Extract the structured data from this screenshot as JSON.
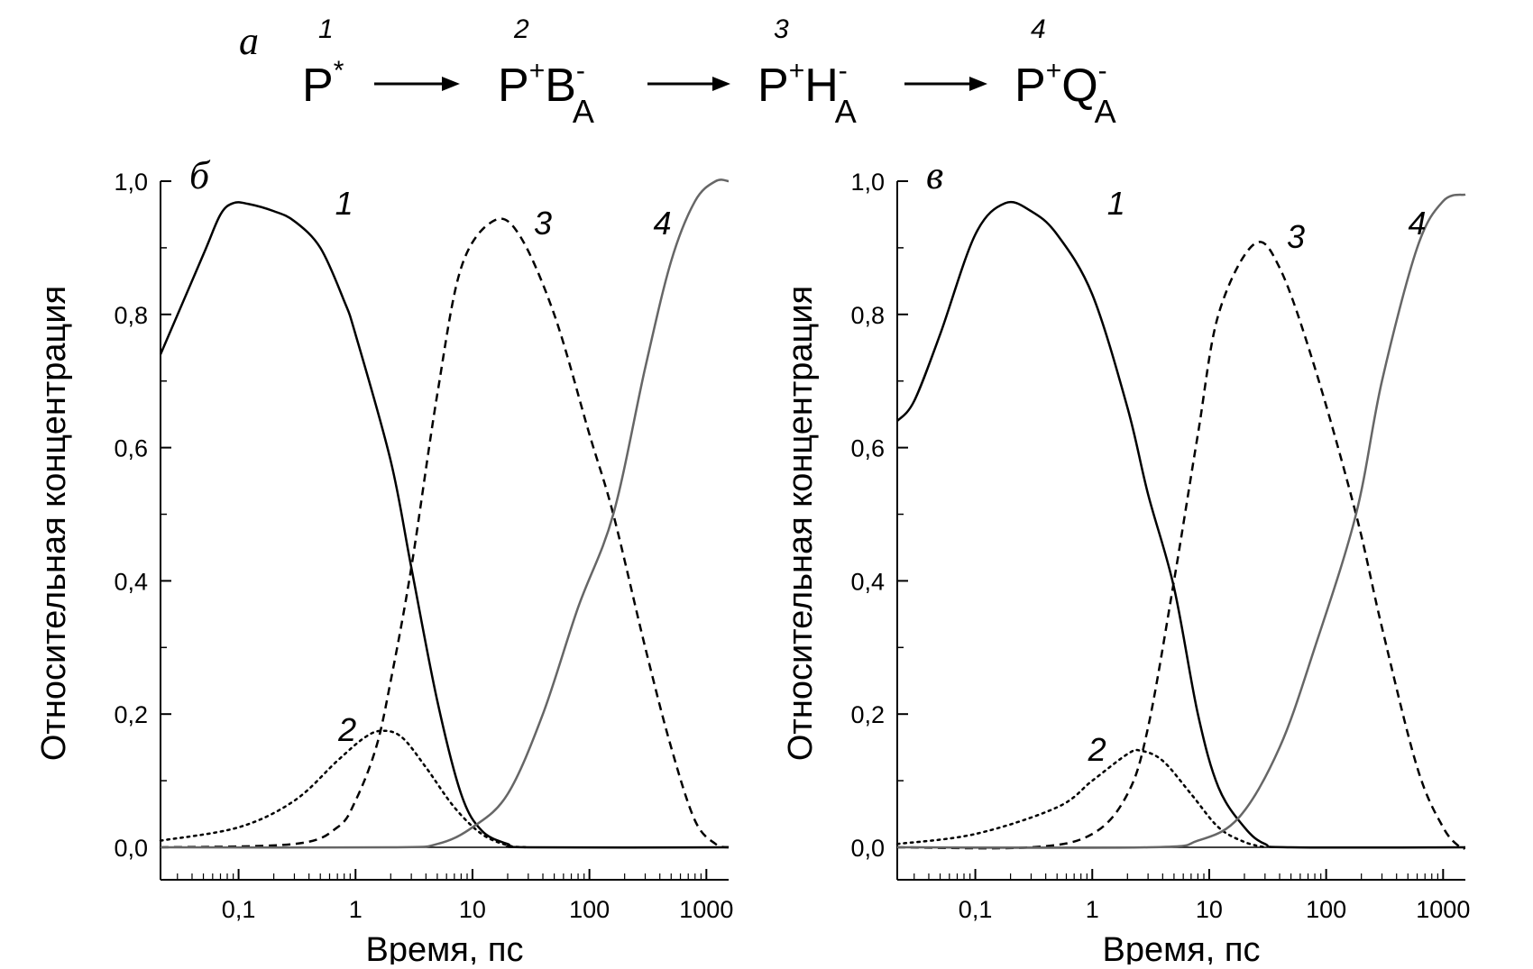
{
  "scheme": {
    "label": "а",
    "states": [
      {
        "num": "1",
        "main": "P",
        "sup": "*",
        "sub": ""
      },
      {
        "num": "2",
        "main": "P",
        "sup": "+",
        "main2": "B",
        "sup2": "-",
        "sub2": "A"
      },
      {
        "num": "3",
        "main": "P",
        "sup": "+",
        "main2": "H",
        "sup2": "-",
        "sub2": "A"
      },
      {
        "num": "4",
        "main": "P",
        "sup": "+",
        "main2": "Q",
        "sup2": "-",
        "sub2": "A"
      }
    ]
  },
  "chart_data": [
    {
      "type": "line",
      "panel_label": "б",
      "xlabel": "Время, пс",
      "ylabel": "Относительная концентрация",
      "xscale": "log",
      "xlim": [
        0.0215,
        1550
      ],
      "ylim": [
        -0.05,
        1.0
      ],
      "xticks": [
        0.1,
        1,
        10,
        100,
        1000
      ],
      "xtick_labels": [
        "0,1",
        "1",
        "10",
        "100",
        "1000"
      ],
      "yticks": [
        0,
        0.2,
        0.4,
        0.6,
        0.8,
        1.0
      ],
      "ytick_labels": [
        "0,0",
        "0,2",
        "0,4",
        "0,6",
        "0,8",
        "1,0"
      ],
      "grid": false,
      "series": [
        {
          "label": "1",
          "style": "solid",
          "color": "#000000",
          "x": [
            0.0215,
            0.05,
            0.07,
            0.09,
            0.12,
            0.2,
            0.3,
            0.5,
            0.8,
            1,
            2,
            3,
            5,
            8,
            12,
            20,
            30,
            1550
          ],
          "y": [
            0.74,
            0.89,
            0.95,
            0.967,
            0.966,
            0.955,
            0.94,
            0.9,
            0.82,
            0.77,
            0.58,
            0.42,
            0.22,
            0.08,
            0.025,
            0.005,
            0,
            0
          ]
        },
        {
          "label": "2",
          "style": "dotted",
          "color": "#000000",
          "x": [
            0.0215,
            0.1,
            0.3,
            0.7,
            1.2,
            1.7,
            2.5,
            4,
            7,
            12,
            20,
            30
          ],
          "y": [
            0.01,
            0.03,
            0.07,
            0.13,
            0.165,
            0.175,
            0.165,
            0.12,
            0.06,
            0.02,
            0.003,
            0
          ]
        },
        {
          "label": "3",
          "style": "dashed",
          "color": "#000000",
          "x": [
            0.0215,
            0.3,
            0.7,
            1,
            1.5,
            2,
            3,
            5,
            8,
            15,
            25,
            50,
            100,
            160,
            300,
            500,
            800,
            1200,
            1550
          ],
          "y": [
            0,
            0.005,
            0.03,
            0.07,
            0.15,
            0.25,
            0.42,
            0.68,
            0.87,
            0.94,
            0.92,
            0.8,
            0.62,
            0.5,
            0.3,
            0.15,
            0.04,
            0.005,
            0
          ]
        },
        {
          "label": "4",
          "style": "solid",
          "color": "#666666",
          "x": [
            0.0215,
            2,
            5,
            10,
            20,
            40,
            80,
            160,
            300,
            500,
            800,
            1200,
            1550
          ],
          "y": [
            0,
            0,
            0.005,
            0.03,
            0.08,
            0.2,
            0.36,
            0.5,
            0.72,
            0.88,
            0.97,
            1.0,
            1.0
          ]
        }
      ]
    },
    {
      "type": "line",
      "panel_label": "в",
      "xlabel": "Время, пс",
      "ylabel": "Относительная концентрация",
      "xscale": "log",
      "xlim": [
        0.0215,
        1550
      ],
      "ylim": [
        -0.05,
        1.0
      ],
      "xticks": [
        0.1,
        1,
        10,
        100,
        1000
      ],
      "xtick_labels": [
        "0,1",
        "1",
        "10",
        "100",
        "1000"
      ],
      "yticks": [
        0,
        0.2,
        0.4,
        0.6,
        0.8,
        1.0
      ],
      "ytick_labels": [
        "0,0",
        "0,2",
        "0,4",
        "0,6",
        "0,8",
        "1,0"
      ],
      "grid": false,
      "series": [
        {
          "label": "1",
          "style": "solid",
          "color": "#000000",
          "x": [
            0.0215,
            0.03,
            0.05,
            0.1,
            0.18,
            0.3,
            0.5,
            1,
            2,
            3,
            5,
            8,
            12,
            20,
            30,
            50,
            1550
          ],
          "y": [
            0.64,
            0.67,
            0.77,
            0.92,
            0.967,
            0.955,
            0.92,
            0.83,
            0.66,
            0.53,
            0.39,
            0.2,
            0.09,
            0.03,
            0.005,
            0,
            0
          ]
        },
        {
          "label": "2",
          "style": "dotted",
          "color": "#000000",
          "x": [
            0.0215,
            0.1,
            0.5,
            1,
            2,
            2.6,
            4,
            7,
            12,
            20,
            30
          ],
          "y": [
            0.005,
            0.02,
            0.06,
            0.1,
            0.14,
            0.145,
            0.13,
            0.08,
            0.03,
            0.008,
            0
          ]
        },
        {
          "label": "3",
          "style": "dashed",
          "color": "#000000",
          "x": [
            0.0215,
            0.3,
            1,
            2,
            3,
            5,
            8,
            12,
            24,
            40,
            80,
            180,
            300,
            600,
            1000,
            1400,
            1550
          ],
          "y": [
            0,
            0,
            0.02,
            0.08,
            0.18,
            0.4,
            0.62,
            0.8,
            0.905,
            0.87,
            0.72,
            0.5,
            0.33,
            0.12,
            0.03,
            0,
            0
          ]
        },
        {
          "label": "4",
          "style": "solid",
          "color": "#666666",
          "x": [
            0.0215,
            3,
            8,
            18,
            40,
            80,
            180,
            300,
            600,
            1000,
            1550
          ],
          "y": [
            0,
            0,
            0.01,
            0.045,
            0.15,
            0.3,
            0.5,
            0.7,
            0.9,
            0.97,
            0.98
          ]
        }
      ]
    }
  ]
}
